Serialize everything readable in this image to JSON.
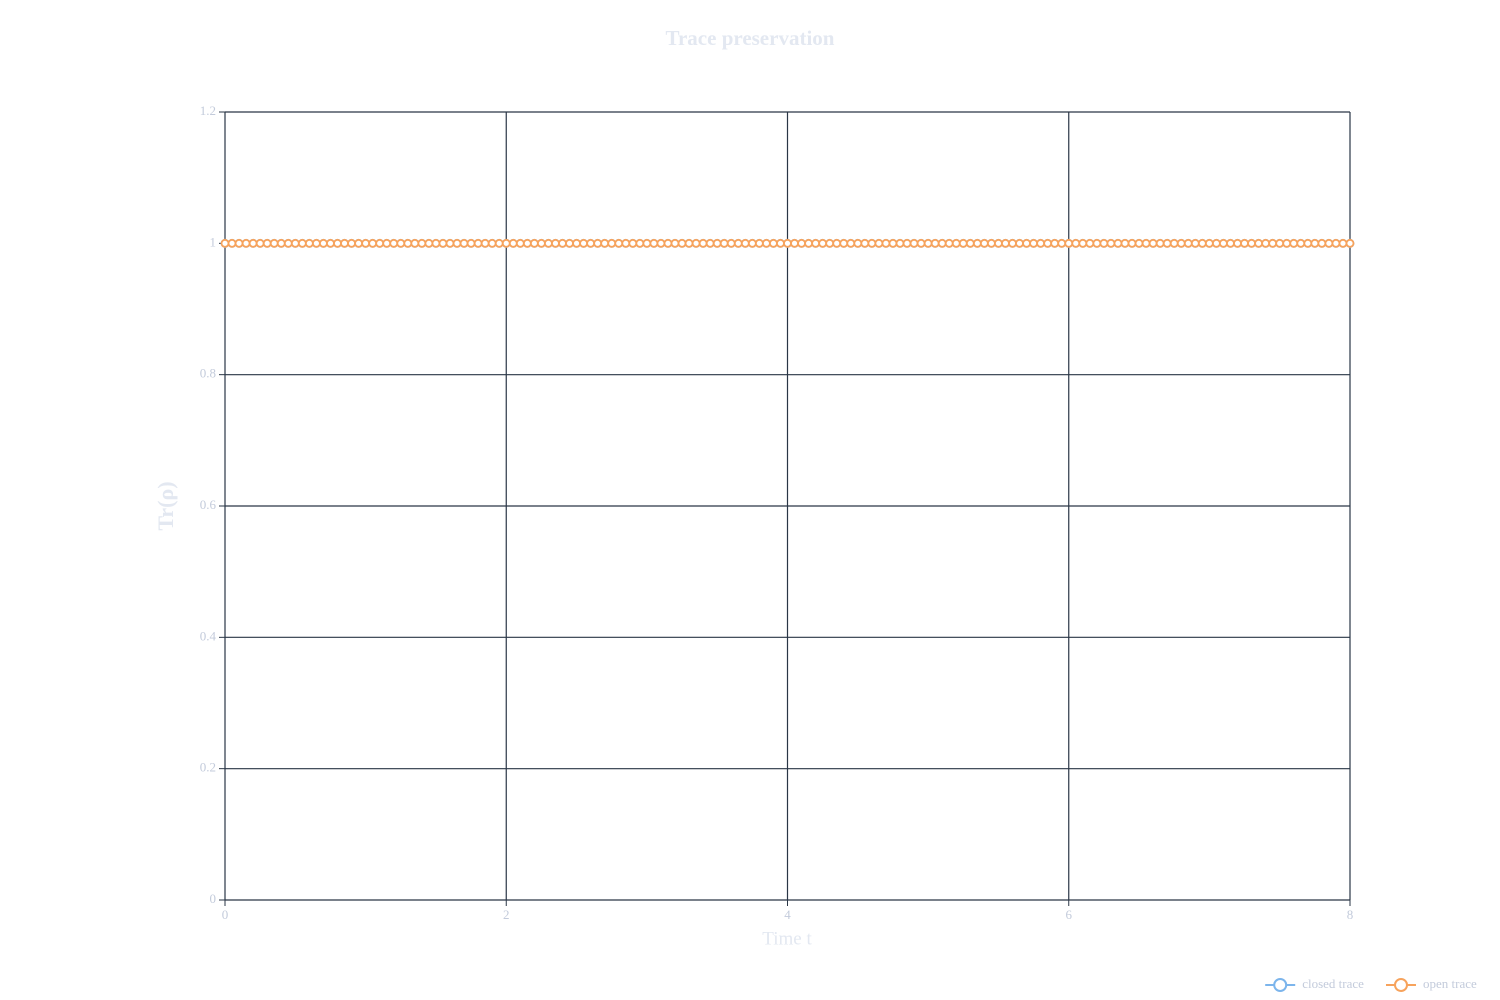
{
  "chart_data": {
    "type": "line",
    "title": "Trace preservation",
    "x_label": "Time t",
    "y_label": "Tr(ρ)",
    "x": [
      0,
      0.05,
      0.1,
      0.15,
      0.2,
      0.25,
      0.3,
      0.35,
      0.4,
      0.45,
      0.5,
      0.55,
      0.6,
      0.65,
      0.7,
      0.75,
      0.8,
      0.85,
      0.9,
      0.95,
      1,
      1.05,
      1.1,
      1.15,
      1.2,
      1.25,
      1.3,
      1.35,
      1.4,
      1.45,
      1.5,
      1.55,
      1.6,
      1.65,
      1.7,
      1.75,
      1.8,
      1.85,
      1.9,
      1.95,
      2,
      2.05,
      2.1,
      2.15,
      2.2,
      2.25,
      2.3,
      2.35,
      2.4,
      2.45,
      2.5,
      2.55,
      2.6,
      2.65,
      2.7,
      2.75,
      2.8,
      2.85,
      2.9,
      2.95,
      3,
      3.05,
      3.1,
      3.15,
      3.2,
      3.25,
      3.3,
      3.35,
      3.4,
      3.45,
      3.5,
      3.55,
      3.6,
      3.65,
      3.7,
      3.75,
      3.8,
      3.85,
      3.9,
      3.95,
      4,
      4.05,
      4.1,
      4.15,
      4.2,
      4.25,
      4.3,
      4.35,
      4.4,
      4.45,
      4.5,
      4.55,
      4.6,
      4.65,
      4.7,
      4.75,
      4.8,
      4.85,
      4.9,
      4.95,
      5,
      5.05,
      5.1,
      5.15,
      5.2,
      5.25,
      5.3,
      5.35,
      5.4,
      5.45,
      5.5,
      5.55,
      5.6,
      5.65,
      5.7,
      5.75,
      5.8,
      5.85,
      5.9,
      5.95,
      6,
      6.05,
      6.1,
      6.15,
      6.2,
      6.25,
      6.3,
      6.35,
      6.4,
      6.45,
      6.5,
      6.55,
      6.6,
      6.65,
      6.7,
      6.75,
      6.8,
      6.85,
      6.9,
      6.95,
      7,
      7.05,
      7.1,
      7.15,
      7.2,
      7.25,
      7.3,
      7.35,
      7.4,
      7.45,
      7.5,
      7.55,
      7.6,
      7.65,
      7.7,
      7.75,
      7.8,
      7.85,
      7.9,
      7.95,
      8
    ],
    "series": [
      {
        "name": "closed trace",
        "color": "#7cb5ec",
        "values": [
          1,
          1,
          1,
          1,
          1,
          1,
          1,
          1,
          1,
          1,
          1,
          1,
          1,
          1,
          1,
          1,
          1,
          1,
          1,
          1,
          1,
          1,
          1,
          1,
          1,
          1,
          1,
          1,
          1,
          1,
          1,
          1,
          1,
          1,
          1,
          1,
          1,
          1,
          1,
          1,
          1,
          1,
          1,
          1,
          1,
          1,
          1,
          1,
          1,
          1,
          1,
          1,
          1,
          1,
          1,
          1,
          1,
          1,
          1,
          1,
          1,
          1,
          1,
          1,
          1,
          1,
          1,
          1,
          1,
          1,
          1,
          1,
          1,
          1,
          1,
          1,
          1,
          1,
          1,
          1,
          1,
          1,
          1,
          1,
          1,
          1,
          1,
          1,
          1,
          1,
          1,
          1,
          1,
          1,
          1,
          1,
          1,
          1,
          1,
          1,
          1,
          1,
          1,
          1,
          1,
          1,
          1,
          1,
          1,
          1,
          1,
          1,
          1,
          1,
          1,
          1,
          1,
          1,
          1,
          1,
          1,
          1,
          1,
          1,
          1,
          1,
          1,
          1,
          1,
          1,
          1,
          1,
          1,
          1,
          1,
          1,
          1,
          1,
          1,
          1,
          1,
          1,
          1,
          1,
          1,
          1,
          1,
          1,
          1,
          1,
          1,
          1,
          1,
          1,
          1,
          1,
          1,
          1,
          1,
          1,
          1
        ]
      },
      {
        "name": "open trace",
        "color": "#f7a35c",
        "values": [
          1,
          1,
          1,
          1,
          1,
          1,
          1,
          1,
          1,
          1,
          1,
          1,
          1,
          1,
          1,
          1,
          1,
          1,
          1,
          1,
          1,
          1,
          1,
          1,
          1,
          1,
          1,
          1,
          1,
          1,
          1,
          1,
          1,
          1,
          1,
          1,
          1,
          1,
          1,
          1,
          1,
          1,
          1,
          1,
          1,
          1,
          1,
          1,
          1,
          1,
          1,
          1,
          1,
          1,
          1,
          1,
          1,
          1,
          1,
          1,
          1,
          1,
          1,
          1,
          1,
          1,
          1,
          1,
          1,
          1,
          1,
          1,
          1,
          1,
          1,
          1,
          1,
          1,
          1,
          1,
          1,
          1,
          1,
          1,
          1,
          1,
          1,
          1,
          1,
          1,
          1,
          1,
          1,
          1,
          1,
          1,
          1,
          1,
          1,
          1,
          1,
          1,
          1,
          1,
          1,
          1,
          1,
          1,
          1,
          1,
          1,
          1,
          1,
          1,
          1,
          1,
          1,
          1,
          1,
          1,
          1,
          1,
          1,
          1,
          1,
          1,
          1,
          1,
          1,
          1,
          1,
          1,
          1,
          1,
          1,
          1,
          1,
          1,
          1,
          1,
          1,
          1,
          1,
          1,
          1,
          1,
          1,
          1,
          1,
          1,
          1,
          1,
          1,
          1,
          1,
          1,
          1,
          1,
          1,
          1,
          1
        ]
      }
    ],
    "xlim": [
      0,
      8
    ],
    "xticks": [
      0,
      2,
      4,
      6,
      8
    ],
    "ylim": [
      0,
      1.2
    ],
    "yticks": [
      0,
      0.2,
      0.4,
      0.6,
      0.8,
      1,
      1.2
    ],
    "grid": true,
    "legend": "bottom-right"
  }
}
